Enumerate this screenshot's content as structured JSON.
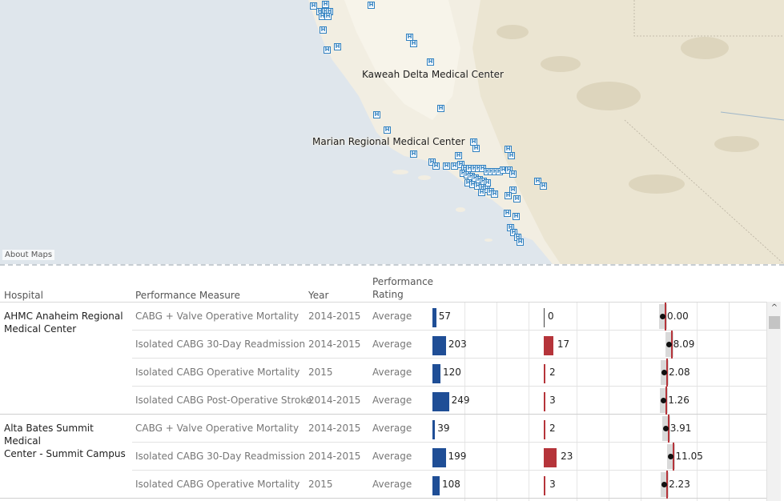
{
  "map": {
    "labels": [
      {
        "text": "Kaweah Delta Medical Center"
      },
      {
        "text": "Marian Regional Medical Center"
      }
    ],
    "pin_glyph": "H",
    "pin_icon": "hospital-marker-icon",
    "about": "About Maps",
    "colors": {
      "water": "#dfe6ec",
      "land": "#f2eee2",
      "pin": "#2f80c0"
    }
  },
  "table": {
    "headers": {
      "hospital": "Hospital",
      "measure": "Performance Measure",
      "year": "Year",
      "rating_line1": "Performance",
      "rating_line2": "Rating"
    },
    "hospitals": [
      {
        "name_line1": "AHMC Anaheim Regional",
        "name_line2": "Medical Center",
        "rows": [
          {
            "measure": "CABG + Valve Operative Mortality",
            "year": "2014-2015",
            "rating": "Average",
            "cases": "57",
            "events": "0",
            "rate": "0.00",
            "cases_n": 57,
            "events_n": 0,
            "rate_n": 0.0
          },
          {
            "measure": "Isolated CABG 30-Day Readmission",
            "year": "2014-2015",
            "rating": "Average",
            "cases": "203",
            "events": "17",
            "rate": "8.09",
            "cases_n": 203,
            "events_n": 17,
            "rate_n": 8.09
          },
          {
            "measure": "Isolated CABG Operative Mortality",
            "year": "2015",
            "rating": "Average",
            "cases": "120",
            "events": "2",
            "rate": "2.08",
            "cases_n": 120,
            "events_n": 2,
            "rate_n": 2.08
          },
          {
            "measure": "Isolated CABG Post-Operative Stroke",
            "year": "2014-2015",
            "rating": "Average",
            "cases": "249",
            "events": "3",
            "rate": "1.26",
            "cases_n": 249,
            "events_n": 3,
            "rate_n": 1.26
          }
        ]
      },
      {
        "name_line1": "Alta Bates Summit Medical",
        "name_line2": "Center - Summit Campus",
        "rows": [
          {
            "measure": "CABG + Valve Operative Mortality",
            "year": "2014-2015",
            "rating": "Average",
            "cases": "39",
            "events": "2",
            "rate": "3.91",
            "cases_n": 39,
            "events_n": 2,
            "rate_n": 3.91
          },
          {
            "measure": "Isolated CABG 30-Day Readmission",
            "year": "2014-2015",
            "rating": "Average",
            "cases": "199",
            "events": "23",
            "rate": "11.05",
            "cases_n": 199,
            "events_n": 23,
            "rate_n": 11.05
          },
          {
            "measure": "Isolated CABG Operative Mortality",
            "year": "2015",
            "rating": "Average",
            "cases": "108",
            "events": "3",
            "rate": "2.23",
            "cases_n": 108,
            "events_n": 3,
            "rate_n": 2.23
          }
        ]
      }
    ],
    "colors": {
      "cases_bar": "#1f4e96",
      "events_bar": "#b5343a",
      "rate_marker": "#111111",
      "reference_line": "#b5343a"
    }
  },
  "scrollbar": {
    "up_arrow_icon": "chevron-up-icon",
    "up_glyph": "^"
  }
}
